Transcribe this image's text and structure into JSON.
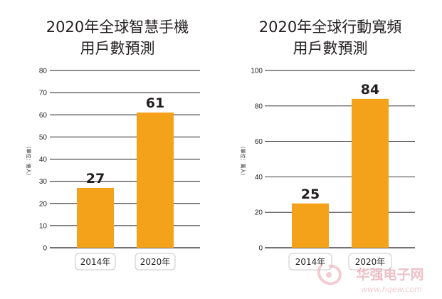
{
  "colors": {
    "bar": "#f5a21b",
    "grid": "#231f20",
    "axis_text": "#231f20",
    "pill_border": "#c8c8c8",
    "watermark_cn": "#e8a6b0",
    "watermark_url": "#f1c7ce"
  },
  "chart_data": [
    {
      "type": "bar",
      "title_lines": [
        "2020年全球智慧手機",
        "用戶數預測"
      ],
      "ylabel": "（單位：億人）",
      "categories": [
        "2014年",
        "2020年"
      ],
      "values": [
        27,
        61
      ],
      "ylim": [
        0,
        80
      ],
      "yticks": [
        0,
        10,
        20,
        30,
        40,
        50,
        60,
        70,
        80
      ],
      "grid": true,
      "data_labels": true
    },
    {
      "type": "bar",
      "title_lines": [
        "2020年全球行動寬頻",
        "用戶數預測"
      ],
      "ylabel": "（單位：萬人）",
      "categories": [
        "2014年",
        "2020年"
      ],
      "values": [
        25,
        84
      ],
      "ylim": [
        0,
        100
      ],
      "yticks": [
        0,
        20,
        40,
        60,
        80,
        100
      ],
      "grid": true,
      "data_labels": true
    }
  ],
  "watermark": {
    "brand": "华强电子网",
    "url": "www.hqew.com"
  }
}
